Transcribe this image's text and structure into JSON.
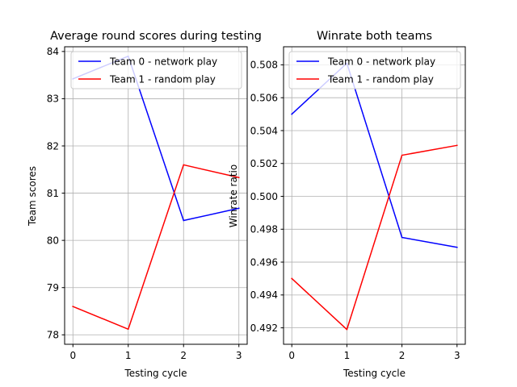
{
  "chart_data": [
    {
      "type": "line",
      "title": "Average round scores during testing",
      "xlabel": "Testing cycle",
      "ylabel": "Team scores",
      "x": [
        0,
        1,
        2,
        3
      ],
      "xticks": [
        "0",
        "1",
        "2",
        "3"
      ],
      "yticks": [
        "78",
        "79",
        "80",
        "81",
        "82",
        "83",
        "84"
      ],
      "xlim": [
        -0.15,
        3.15
      ],
      "ylim": [
        77.8,
        84.1
      ],
      "grid": true,
      "legend_position": "top-right",
      "series": [
        {
          "name": "Team 0 - network play",
          "color": "#0000ff",
          "values": [
            83.42,
            83.9,
            80.42,
            80.68
          ]
        },
        {
          "name": "Team 1 - random play",
          "color": "#ff0000",
          "values": [
            78.6,
            78.12,
            81.6,
            81.33
          ]
        }
      ]
    },
    {
      "type": "line",
      "title": "Winrate both teams",
      "xlabel": "Testing cycle",
      "ylabel": "Winrate ratio",
      "x": [
        0,
        1,
        2,
        3
      ],
      "xticks": [
        "0",
        "1",
        "2",
        "3"
      ],
      "yticks": [
        "0.492",
        "0.494",
        "0.496",
        "0.498",
        "0.500",
        "0.502",
        "0.504",
        "0.506",
        "0.508"
      ],
      "xlim": [
        -0.15,
        3.15
      ],
      "ylim": [
        0.491,
        0.5091
      ],
      "grid": true,
      "legend_position": "top-right",
      "series": [
        {
          "name": "Team 0 - network play",
          "color": "#0000ff",
          "values": [
            0.505,
            0.5081,
            0.4975,
            0.4969
          ]
        },
        {
          "name": "Team 1 - random play",
          "color": "#ff0000",
          "values": [
            0.495,
            0.4919,
            0.5025,
            0.5031
          ]
        }
      ]
    }
  ]
}
